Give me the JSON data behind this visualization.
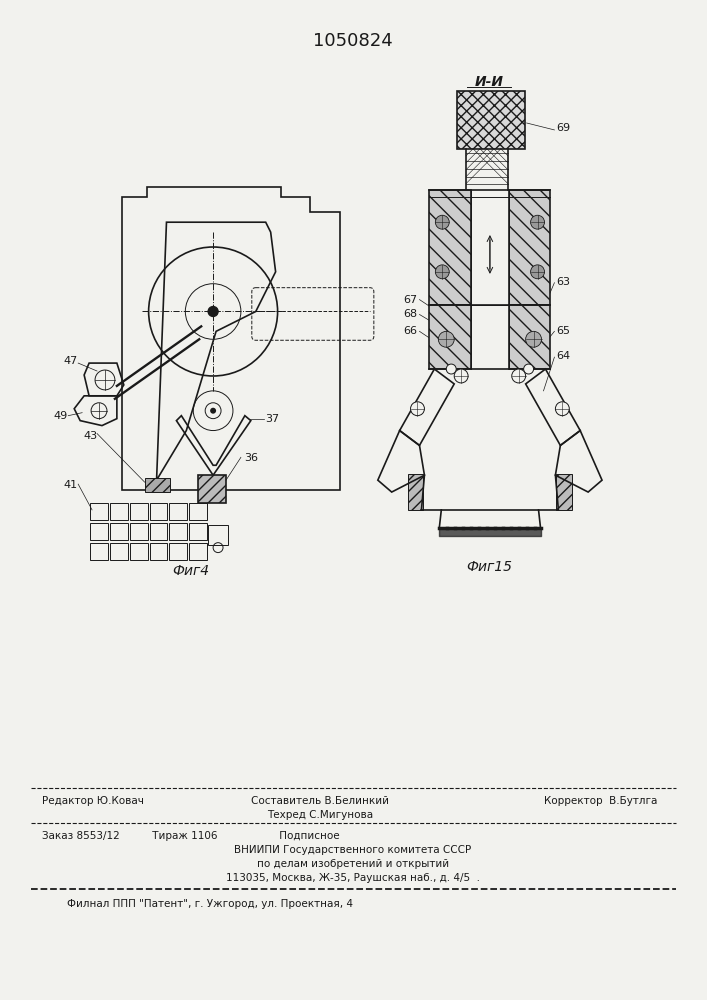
{
  "patent_number": "1050824",
  "fig4_label": "Фиг4",
  "fig5_label": "Фиг15",
  "section_label": "И-И",
  "bg_color": "#f2f2ee",
  "line_color": "#1a1a1a",
  "footer_line1_left": "Редактор Ю.Ковач",
  "footer_line1_center_1": "Составитель В.Белинкий",
  "footer_line1_center_2": "Техред С.Мигунова",
  "footer_line1_right": "Корректор  В.Бутлга",
  "footer_line2": "Заказ 8553/12          Тираж 1106                   Подписное",
  "footer_line3": "ВНИИПИ Государственного комитета СССР",
  "footer_line4": "по делам изобретений и открытий",
  "footer_line5": "113035, Москва, Ж-35, Раушская наб., д. 4/5  .",
  "footer_line6": "Филнал ППП \"Патент\", г. Ужгород, ул. Проектная, 4"
}
